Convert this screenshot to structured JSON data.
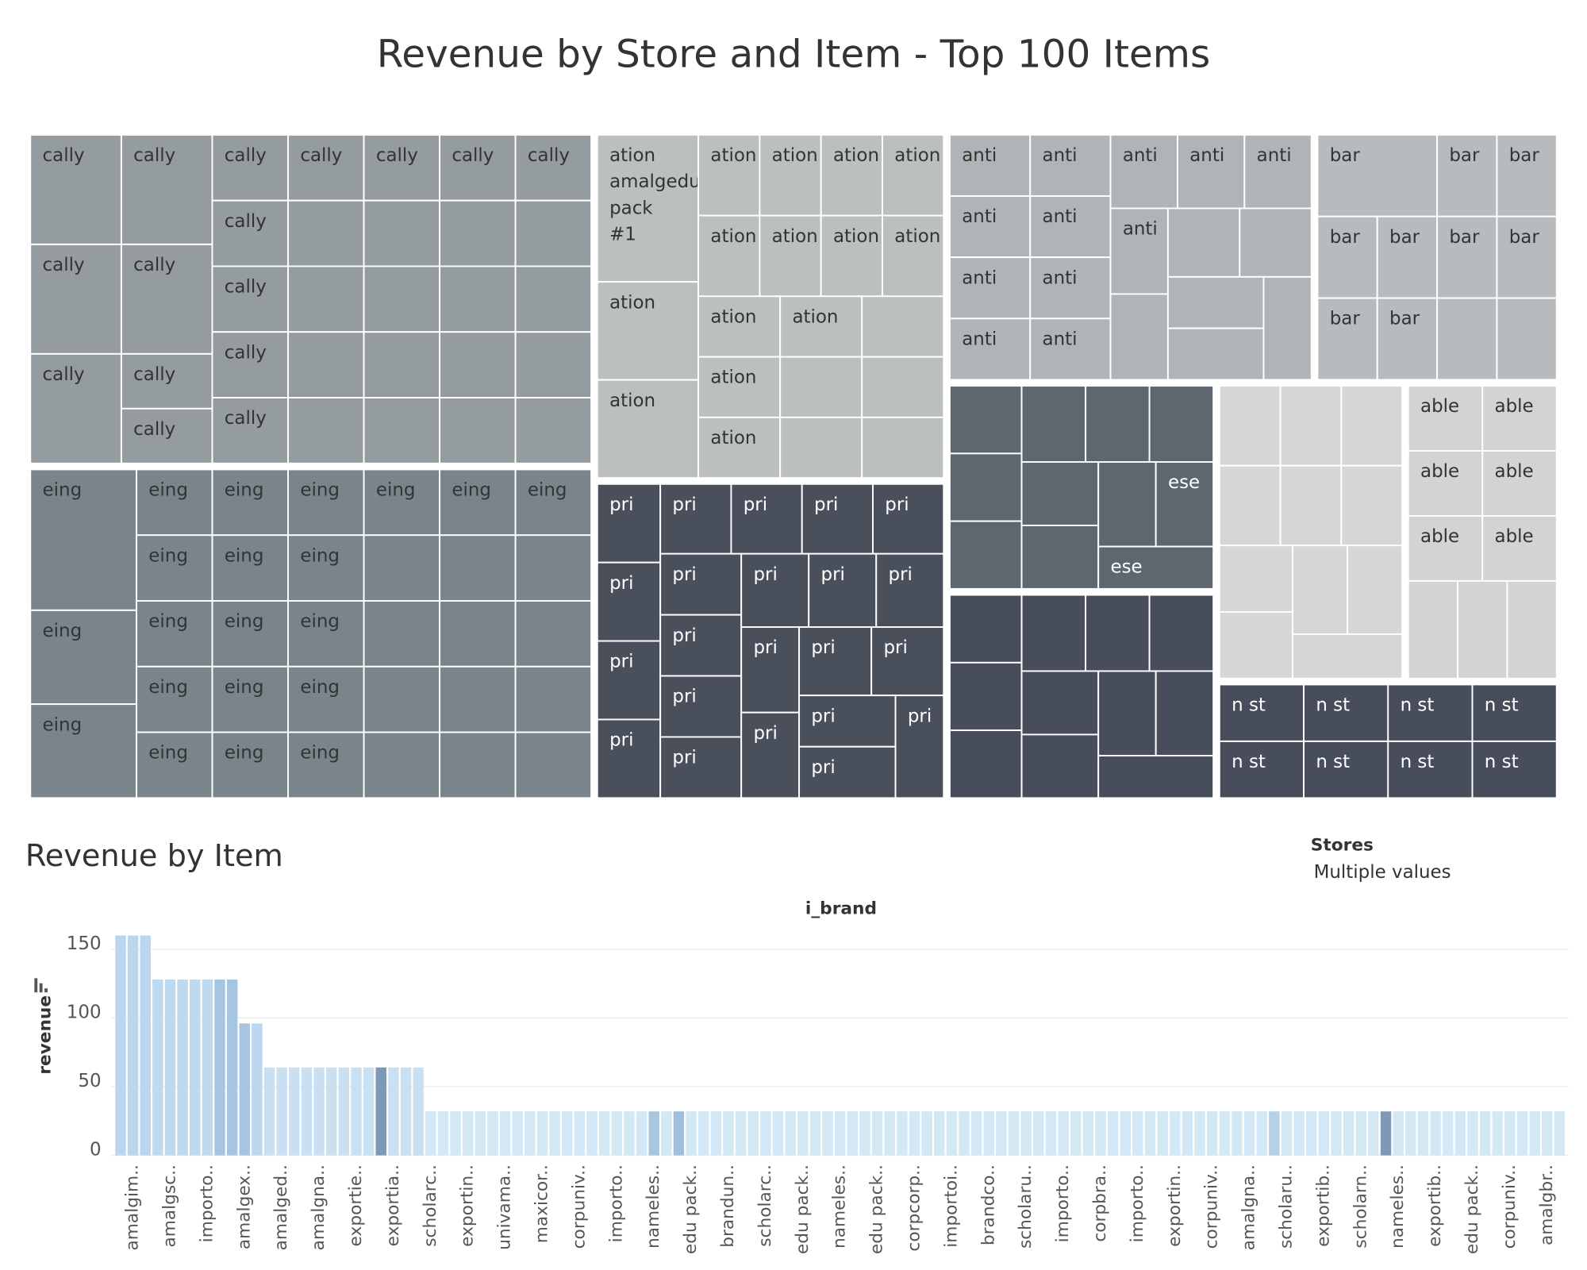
{
  "chart_data": [
    {
      "type": "treemap",
      "title": "Revenue by Store and Item - Top 100 Items",
      "groups": [
        {
          "color": "#959c9f",
          "labels": [
            "cally",
            "cally",
            "cally",
            "cally",
            "cally",
            "cally",
            "cally",
            "cally",
            "cally",
            "cally",
            "cally",
            "cally",
            "cally",
            "cally",
            "cally",
            "cally",
            null,
            null,
            null,
            null,
            null,
            null,
            null,
            null,
            null,
            null,
            null,
            null,
            null,
            null,
            null,
            null
          ],
          "values": [
            64,
            64,
            64,
            64,
            64,
            32,
            32,
            32,
            32,
            32,
            32,
            32,
            32,
            32,
            32,
            32,
            32,
            32,
            32,
            32,
            32,
            32,
            32,
            32,
            32,
            32,
            32,
            32,
            32,
            32,
            32,
            32
          ]
        },
        {
          "color": "#7a858b",
          "labels": [
            "eing",
            "eing",
            "eing",
            "eing",
            "eing",
            "eing",
            "eing",
            "eing",
            "eing",
            "eing",
            "eing",
            "eing",
            "eing",
            "eing",
            "eing",
            "eing",
            "eing",
            "eing",
            "eing",
            "eing",
            "eing",
            null,
            null,
            null,
            null,
            null,
            null,
            null,
            null,
            null,
            null,
            null,
            null
          ],
          "values": [
            96,
            64,
            64,
            32,
            32,
            32,
            32,
            32,
            32,
            32,
            32,
            32,
            32,
            32,
            32,
            32,
            32,
            32,
            32,
            32,
            32,
            32,
            32,
            32,
            32,
            32,
            32,
            32,
            32,
            32,
            32,
            32,
            32
          ]
        },
        {
          "color": "#bcbfbf",
          "labels": [
            "ation amalgedu pack #1",
            "ation",
            "ation",
            "ation",
            "ation",
            "ation",
            "ation",
            "ation",
            "ation",
            "ation",
            "ation",
            "ation",
            "ation",
            "ation",
            "ation",
            null,
            null,
            null,
            null,
            null
          ],
          "values": [
            96,
            64,
            64,
            32,
            32,
            32,
            32,
            32,
            32,
            32,
            32,
            32,
            32,
            32,
            32,
            32,
            32,
            32,
            32,
            32
          ]
        },
        {
          "color": "#4a4f5c",
          "labels": [
            "pri",
            "pri",
            "pri",
            "pri",
            "pri",
            "pri",
            "pri",
            "pri",
            "pri",
            "pri",
            "pri",
            "pri",
            "pri",
            "pri",
            "pri",
            "pri",
            "pri",
            "pri",
            "pri",
            "pri",
            "pri",
            "pri"
          ],
          "values": [
            32,
            32,
            32,
            32,
            32,
            32,
            32,
            32,
            32,
            32,
            32,
            32,
            32,
            32,
            32,
            32,
            32,
            32,
            32,
            32,
            32,
            32
          ]
        },
        {
          "color": "#b1b4b6",
          "labels": [
            "anti",
            "anti",
            "anti",
            "anti",
            "anti",
            "anti",
            "anti",
            "anti",
            "anti",
            "anti",
            "anti",
            "anti",
            null,
            null,
            null,
            null,
            null,
            null
          ],
          "values": [
            32,
            32,
            32,
            32,
            32,
            32,
            32,
            32,
            32,
            32,
            32,
            32,
            32,
            32,
            32,
            32,
            32,
            32
          ]
        },
        {
          "color": "#b8bbbd",
          "labels": [
            "bar",
            "bar",
            "bar",
            "bar",
            "bar",
            "bar",
            "bar",
            "bar",
            "bar",
            null,
            null
          ],
          "values": [
            64,
            32,
            32,
            32,
            32,
            32,
            32,
            32,
            32,
            32,
            32
          ]
        },
        {
          "color": "#5e6770",
          "labels": [
            null,
            null,
            null,
            null,
            null,
            null,
            null,
            null,
            null,
            "ese",
            "ese"
          ],
          "values": [
            32,
            32,
            32,
            32,
            32,
            32,
            32,
            32,
            32,
            32,
            32
          ]
        },
        {
          "color": "#474d5b",
          "labels": [
            null,
            null,
            null,
            null,
            null,
            null,
            null,
            null,
            null,
            null,
            null
          ],
          "values": [
            32,
            32,
            32,
            32,
            32,
            32,
            32,
            32,
            32,
            32,
            32
          ]
        },
        {
          "color": "#d5d6d6",
          "labels": [
            null,
            null,
            null,
            null,
            null,
            null,
            null,
            null,
            null,
            null,
            null
          ],
          "values": [
            32,
            32,
            32,
            32,
            32,
            32,
            32,
            32,
            32,
            32,
            32
          ]
        },
        {
          "color": "#d2d3d3",
          "labels": [
            "able",
            "able",
            "able",
            "able",
            "able",
            "able",
            null,
            null,
            null
          ],
          "values": [
            32,
            32,
            32,
            32,
            32,
            32,
            32,
            32,
            32
          ]
        },
        {
          "color": "#474d5b",
          "labels": [
            "n st",
            "n st",
            "n st",
            "n st",
            "n st",
            "n st",
            "n st",
            "n st"
          ],
          "values": [
            32,
            32,
            32,
            32,
            32,
            32,
            32,
            32
          ]
        }
      ]
    },
    {
      "type": "bar",
      "title": "Revenue by Item",
      "x_label": "i_brand",
      "y_label": "revenue",
      "ylim": [
        0,
        165
      ],
      "yticks": [
        0,
        50,
        100,
        150
      ],
      "grid": true,
      "categories": [
        null,
        "amalgim..",
        null,
        null,
        "amalgsc..",
        null,
        null,
        "importo..",
        null,
        null,
        "amalgex..",
        null,
        null,
        "amalged..",
        null,
        null,
        "amalgna..",
        null,
        null,
        "exportie..",
        null,
        null,
        "exportia..",
        null,
        null,
        "scholarc..",
        null,
        null,
        "exportin..",
        null,
        null,
        "univama..",
        null,
        null,
        "maxicor..",
        null,
        null,
        "corpuniv..",
        null,
        null,
        "importo..",
        null,
        null,
        "nameles..",
        null,
        null,
        "edu pack..",
        null,
        null,
        "brandun..",
        null,
        null,
        "scholarc..",
        null,
        null,
        "edu pack..",
        null,
        null,
        "nameles..",
        null,
        null,
        "edu pack..",
        null,
        null,
        "corpcorp..",
        null,
        null,
        "importoi..",
        null,
        null,
        "brandco..",
        null,
        null,
        "scholaru..",
        null,
        null,
        "importo..",
        null,
        null,
        "corpbra..",
        null,
        null,
        "importo..",
        null,
        null,
        "exportin..",
        null,
        null,
        "corpuniv..",
        null,
        null,
        "amalgna..",
        null,
        null,
        "scholaru..",
        null,
        null,
        "exportib..",
        null,
        null,
        "scholarn..",
        null,
        null,
        "nameles..",
        null,
        null,
        "exportib..",
        null,
        null,
        "edu pack..",
        null,
        null,
        "corpuniv..",
        null,
        null,
        "amalgbr..",
        null
      ],
      "values": [
        160,
        160,
        160,
        128,
        128,
        128,
        128,
        128,
        128,
        128,
        96,
        96,
        64,
        64,
        64,
        64,
        64,
        64,
        64,
        64,
        64,
        64,
        64,
        64,
        64,
        32,
        32,
        32,
        32,
        32,
        32,
        32,
        32,
        32,
        32,
        32,
        32,
        32,
        32,
        32,
        32,
        32,
        32,
        32,
        32,
        32,
        32,
        32,
        32,
        32,
        32,
        32,
        32,
        32,
        32,
        32,
        32,
        32,
        32,
        32,
        32,
        32,
        32,
        32,
        32,
        32,
        32,
        32,
        32,
        32,
        32,
        32,
        32,
        32,
        32,
        32,
        32,
        32,
        32,
        32,
        32,
        32,
        32,
        32,
        32,
        32,
        32,
        32,
        32,
        32,
        32,
        32,
        32,
        32,
        32,
        32,
        32,
        32,
        32,
        32,
        32,
        32,
        32,
        32,
        32,
        32,
        32,
        32,
        32,
        32,
        32,
        32,
        32,
        32,
        32,
        32,
        32
      ],
      "colors": [
        "#b9d6ee",
        "#b9d6ee",
        "#b9d6ee",
        "#bfd9ee",
        "#bfd9ee",
        "#bfd9ee",
        "#bfd9ee",
        "#bfd9ee",
        "#a6c5e0",
        "#a6c5e0",
        "#a6c5e0",
        "#bcd7ed",
        "#c9e0f2",
        "#c9e0f2",
        "#c9e0f2",
        "#c9e0f2",
        "#c9e0f2",
        "#c9e0f2",
        "#c9e0f2",
        "#c9e0f2",
        "#c9e0f2",
        "#7d99b5",
        "#c9e0f2",
        "#c9e0f2",
        "#c9e0f2",
        "#d4e7f5",
        "#d4e7f5",
        "#d4e7f5",
        "#d4e7f5",
        "#d4e7f5",
        "#d4e7f5",
        "#d4e7f5",
        "#d4e7f5",
        "#d4e7f5",
        "#d4e7f5",
        "#d4e7f5",
        "#d4e7f5",
        "#d4e7f5",
        "#d4e7f5",
        "#d4e7f5",
        "#d4e7f5",
        "#d4e7f5",
        "#d4e7f5",
        "#a9c6df",
        "#d4e7f5",
        "#9fbfdc",
        "#d4e7f5",
        "#d4e7f5",
        "#d4e7f5",
        "#d4e7f5",
        "#d4e7f5",
        "#d4e7f5",
        "#d4e7f5",
        "#d4e7f5",
        "#d4e7f5",
        "#d4e7f5",
        "#d4e7f5",
        "#d4e7f5",
        "#d4e7f5",
        "#d4e7f5",
        "#d4e7f5",
        "#d4e7f5",
        "#d4e7f5",
        "#d4e7f5",
        "#d4e7f5",
        "#d4e7f5",
        "#d4e7f5",
        "#d4e7f5",
        "#d4e7f5",
        "#d4e7f5",
        "#d4e7f5",
        "#d4e7f5",
        "#d4e7f5",
        "#d4e7f5",
        "#d4e7f5",
        "#d4e7f5",
        "#d4e7f5",
        "#d4e7f5",
        "#d4e7f5",
        "#d4e7f5",
        "#d4e7f5",
        "#d4e7f5",
        "#d4e7f5",
        "#d4e7f5",
        "#d4e7f5",
        "#d4e7f5",
        "#d4e7f5",
        "#d4e7f5",
        "#d4e7f5",
        "#d4e7f5",
        "#d4e7f5",
        "#d4e7f5",
        "#d4e7f5",
        "#b5d1e8",
        "#d4e7f5",
        "#d4e7f5",
        "#d4e7f5",
        "#d4e7f5",
        "#d4e7f5",
        "#d4e7f5",
        "#d4e7f5",
        "#d4e7f5",
        "#7d99b5",
        "#d4e7f5",
        "#d4e7f5",
        "#d4e7f5",
        "#d4e7f5",
        "#d4e7f5",
        "#d4e7f5",
        "#d4e7f5",
        "#d4e7f5",
        "#d4e7f5",
        "#d4e7f5",
        "#d4e7f5",
        "#d4e7f5",
        "#d4e7f5",
        "#d4e7f5"
      ]
    }
  ],
  "filter": {
    "title": "Stores",
    "value": "Multiple values"
  }
}
